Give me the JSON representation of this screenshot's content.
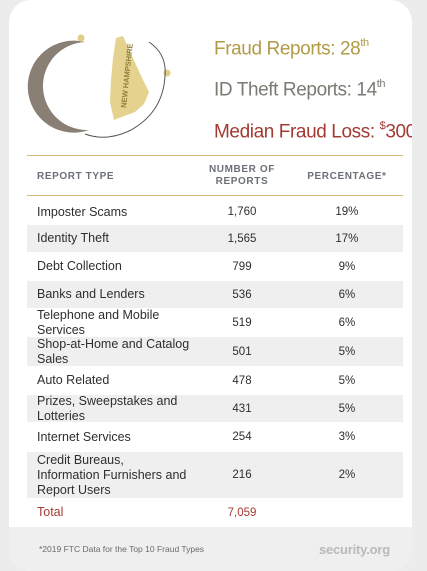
{
  "stats": {
    "fraud_reports_label": "Fraud Reports: 28",
    "fraud_reports_suffix": "th",
    "id_theft_label": "ID Theft Reports: 14",
    "id_theft_suffix": "th",
    "median_loss_label": "Median Fraud Loss: ",
    "median_loss_currency": "$",
    "median_loss_value": "300"
  },
  "map": {
    "state_label": "NEW HAMPSHIRE"
  },
  "table": {
    "headers": [
      "REPORT TYPE",
      "NUMBER OF",
      "REPORTS",
      "PERCENTAGE*"
    ],
    "rows": [
      {
        "type": "Imposter Scams",
        "reports": "1,760",
        "percent": "19%"
      },
      {
        "type": "Identity Theft",
        "reports": "1,565",
        "percent": "17%"
      },
      {
        "type": "Debt Collection",
        "reports": "799",
        "percent": "9%"
      },
      {
        "type": "Banks and Lenders",
        "reports": "536",
        "percent": "6%"
      },
      {
        "type": "Telephone and Mobile Services",
        "reports": "519",
        "percent": "6%"
      },
      {
        "type": "Shop-at-Home and Catalog Sales",
        "reports": "501",
        "percent": "5%"
      },
      {
        "type": "Auto Related",
        "reports": "478",
        "percent": "5%"
      },
      {
        "type": "Prizes, Sweepstakes and Lotteries",
        "reports": "431",
        "percent": "5%"
      },
      {
        "type": "Internet Services",
        "reports": "254",
        "percent": "3%"
      },
      {
        "type": "Credit Bureaus, Information Furnishers and Report Users",
        "reports": "216",
        "percent": "2%"
      }
    ],
    "total": {
      "label": "Total",
      "reports": "7,059"
    }
  },
  "footer": {
    "note": "*2019 FTC Data for the Top 10 Fraud Types",
    "brand": "security.org"
  },
  "colors": {
    "gold": "#b29a46",
    "gray_text": "#7b7a72",
    "red": "#a43a32",
    "state_fill": "#e5d28e",
    "moon_fill": "#8a7f74"
  }
}
